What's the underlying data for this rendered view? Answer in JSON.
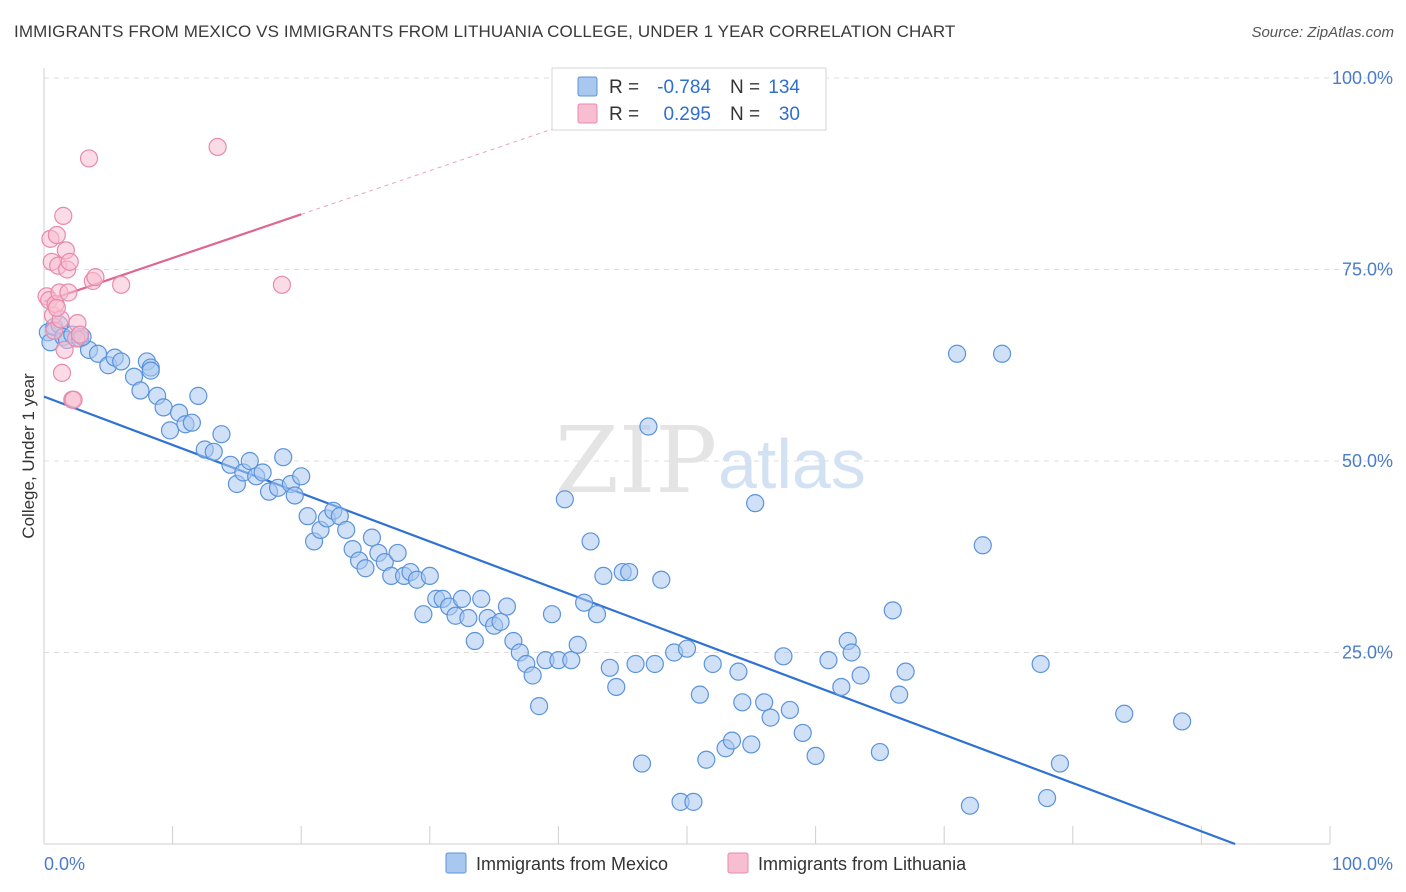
{
  "title": "IMMIGRANTS FROM MEXICO VS IMMIGRANTS FROM LITHUANIA COLLEGE, UNDER 1 YEAR CORRELATION CHART",
  "source": "Source: ZipAtlas.com",
  "watermark": {
    "zip": "ZIP",
    "atlas": "atlas"
  },
  "colors": {
    "mexico_fill": "#a9c8f0",
    "mexico_stroke": "#5b93db",
    "mexico_line": "#2f72d4",
    "lithuania_fill": "#f7bdd0",
    "lithuania_stroke": "#e88aab",
    "lithuania_line": "#e0658f",
    "grid": "#dddddd",
    "tick_text": "#4a7cc9"
  },
  "legend": {
    "rows": [
      {
        "r_label": "R =",
        "r_value": "-0.784",
        "n_label": "N =",
        "n_value": "134"
      },
      {
        "r_label": "R =",
        "r_value": "0.295",
        "n_label": "N =",
        "n_value": "30"
      }
    ]
  },
  "bottom_legend": [
    "Immigrants from Mexico",
    "Immigrants from Lithuania"
  ],
  "chart_data": {
    "type": "scatter",
    "title": "IMMIGRANTS FROM MEXICO VS IMMIGRANTS FROM LITHUANIA COLLEGE, UNDER 1 YEAR CORRELATION CHART",
    "xlabel": "",
    "ylabel": "College, Under 1 year",
    "xlim": [
      0,
      100
    ],
    "ylim": [
      0,
      100
    ],
    "x_tick_labels": [
      "0.0%",
      "100.0%"
    ],
    "y_tick_labels": [
      "25.0%",
      "50.0%",
      "75.0%",
      "100.0%"
    ],
    "y_ticks": [
      25,
      50,
      75,
      100
    ],
    "grid": true,
    "legend_position": "top-center",
    "series": [
      {
        "name": "Immigrants from Mexico",
        "color": "#5b93db",
        "trend": {
          "x": [
            0,
            95
          ],
          "y": [
            58.4,
            -1.5
          ],
          "style": "solid"
        },
        "points": [
          [
            0.3,
            66.8
          ],
          [
            0.5,
            65.5
          ],
          [
            0.8,
            67.5
          ],
          [
            1.2,
            67.8
          ],
          [
            1.5,
            66.2
          ],
          [
            1.8,
            65.8
          ],
          [
            2.2,
            66.5
          ],
          [
            2.8,
            66.0
          ],
          [
            3.5,
            64.5
          ],
          [
            4.2,
            64.0
          ],
          [
            5.0,
            62.5
          ],
          [
            5.5,
            63.5
          ],
          [
            6.0,
            63.0
          ],
          [
            7.0,
            61.0
          ],
          [
            7.5,
            59.2
          ],
          [
            8.0,
            63.0
          ],
          [
            8.3,
            62.2
          ],
          [
            8.8,
            58.5
          ],
          [
            9.3,
            57.0
          ],
          [
            9.8,
            54.0
          ],
          [
            10.5,
            56.3
          ],
          [
            11.0,
            54.8
          ],
          [
            11.5,
            55.0
          ],
          [
            12.0,
            58.5
          ],
          [
            12.5,
            51.5
          ],
          [
            13.2,
            51.2
          ],
          [
            13.8,
            53.5
          ],
          [
            14.5,
            49.5
          ],
          [
            15.0,
            47.0
          ],
          [
            15.5,
            48.5
          ],
          [
            16.0,
            50.0
          ],
          [
            16.5,
            48.0
          ],
          [
            17.0,
            48.5
          ],
          [
            17.5,
            46.0
          ],
          [
            18.2,
            46.5
          ],
          [
            18.6,
            50.5
          ],
          [
            19.2,
            47.0
          ],
          [
            19.5,
            45.5
          ],
          [
            20.0,
            48.0
          ],
          [
            20.5,
            42.8
          ],
          [
            21.0,
            39.5
          ],
          [
            21.5,
            41.0
          ],
          [
            22.0,
            42.5
          ],
          [
            22.5,
            43.5
          ],
          [
            23.0,
            42.8
          ],
          [
            23.5,
            41.0
          ],
          [
            24.0,
            38.5
          ],
          [
            24.5,
            37.0
          ],
          [
            25.0,
            36.0
          ],
          [
            25.5,
            40.0
          ],
          [
            26.0,
            38.0
          ],
          [
            26.5,
            36.8
          ],
          [
            27.0,
            35.0
          ],
          [
            27.5,
            38.0
          ],
          [
            28.0,
            35.0
          ],
          [
            28.5,
            35.5
          ],
          [
            29.0,
            34.5
          ],
          [
            29.5,
            30.0
          ],
          [
            30.0,
            35.0
          ],
          [
            30.5,
            32.0
          ],
          [
            31.0,
            32.0
          ],
          [
            31.5,
            31.0
          ],
          [
            32.0,
            29.8
          ],
          [
            32.5,
            32.0
          ],
          [
            33.0,
            29.5
          ],
          [
            33.5,
            26.5
          ],
          [
            34.0,
            32.0
          ],
          [
            34.5,
            29.5
          ],
          [
            35.0,
            28.5
          ],
          [
            35.5,
            29.0
          ],
          [
            36.0,
            31.0
          ],
          [
            36.5,
            26.5
          ],
          [
            37.0,
            25.0
          ],
          [
            37.5,
            23.5
          ],
          [
            38.0,
            22.0
          ],
          [
            38.5,
            18.0
          ],
          [
            39.0,
            24.0
          ],
          [
            39.5,
            30.0
          ],
          [
            40.0,
            24.0
          ],
          [
            40.5,
            45.0
          ],
          [
            41.0,
            24.0
          ],
          [
            41.5,
            26.0
          ],
          [
            42.0,
            31.5
          ],
          [
            42.5,
            39.5
          ],
          [
            43.0,
            30.0
          ],
          [
            43.5,
            35.0
          ],
          [
            44.0,
            23.0
          ],
          [
            44.5,
            20.5
          ],
          [
            45.0,
            35.5
          ],
          [
            45.5,
            35.5
          ],
          [
            46.0,
            23.5
          ],
          [
            46.5,
            10.5
          ],
          [
            47.0,
            54.5
          ],
          [
            47.5,
            23.5
          ],
          [
            48.0,
            34.5
          ],
          [
            49.0,
            25.0
          ],
          [
            49.5,
            5.5
          ],
          [
            50.0,
            25.5
          ],
          [
            50.5,
            5.5
          ],
          [
            51.0,
            19.5
          ],
          [
            51.5,
            11.0
          ],
          [
            52.0,
            23.5
          ],
          [
            53.0,
            12.5
          ],
          [
            53.5,
            13.5
          ],
          [
            54.0,
            22.5
          ],
          [
            54.3,
            18.5
          ],
          [
            55.0,
            13.0
          ],
          [
            55.3,
            44.5
          ],
          [
            56.0,
            18.5
          ],
          [
            56.5,
            16.5
          ],
          [
            57.5,
            24.5
          ],
          [
            58.0,
            17.5
          ],
          [
            59.0,
            14.5
          ],
          [
            60.0,
            11.5
          ],
          [
            61.0,
            24.0
          ],
          [
            62.0,
            20.5
          ],
          [
            62.5,
            26.5
          ],
          [
            62.8,
            25.0
          ],
          [
            63.5,
            22.0
          ],
          [
            65.0,
            12.0
          ],
          [
            66.0,
            30.5
          ],
          [
            66.5,
            19.5
          ],
          [
            67.0,
            22.5
          ],
          [
            71.0,
            64.0
          ],
          [
            72.0,
            5.0
          ],
          [
            73.0,
            39.0
          ],
          [
            74.5,
            64.0
          ],
          [
            77.5,
            23.5
          ],
          [
            78.0,
            6.0
          ],
          [
            79.0,
            10.5
          ],
          [
            84.0,
            17.0
          ],
          [
            88.5,
            16.0
          ],
          [
            8.3,
            61.8
          ],
          [
            3.0,
            66.2
          ]
        ]
      },
      {
        "name": "Immigrants from Lithuania",
        "color": "#e88aab",
        "trend": {
          "x": [
            0,
            20
          ],
          "y": [
            70.8,
            82.2
          ],
          "style": "solid",
          "dashed_extension_to_x": 42
        },
        "points": [
          [
            0.2,
            71.5
          ],
          [
            0.4,
            71.0
          ],
          [
            0.5,
            79.0
          ],
          [
            0.6,
            76.0
          ],
          [
            0.7,
            69.0
          ],
          [
            0.8,
            67.0
          ],
          [
            0.9,
            70.5
          ],
          [
            1.0,
            79.5
          ],
          [
            1.1,
            75.5
          ],
          [
            1.2,
            72.0
          ],
          [
            1.3,
            68.5
          ],
          [
            1.4,
            61.5
          ],
          [
            1.5,
            82.0
          ],
          [
            1.6,
            64.5
          ],
          [
            1.7,
            77.5
          ],
          [
            1.8,
            75.0
          ],
          [
            1.9,
            72.0
          ],
          [
            2.0,
            76.0
          ],
          [
            2.2,
            58.0
          ],
          [
            2.3,
            58.0
          ],
          [
            2.5,
            66.0
          ],
          [
            2.6,
            68.0
          ],
          [
            2.8,
            66.5
          ],
          [
            3.5,
            89.5
          ],
          [
            3.8,
            73.5
          ],
          [
            4.0,
            74.0
          ],
          [
            6.0,
            73.0
          ],
          [
            13.5,
            91.0
          ],
          [
            18.5,
            73.0
          ],
          [
            1.0,
            70.0
          ]
        ]
      }
    ]
  }
}
